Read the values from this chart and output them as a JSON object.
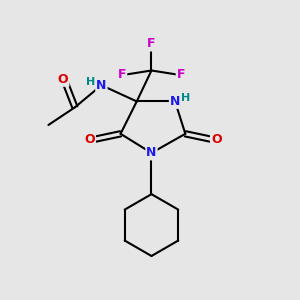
{
  "bg_color": "#e6e6e6",
  "atom_colors": {
    "C": "#000000",
    "N": "#1a1aee",
    "O": "#dd0000",
    "F": "#cc00cc",
    "H": "#008888"
  },
  "bond_color": "#000000",
  "bond_width": 1.5
}
